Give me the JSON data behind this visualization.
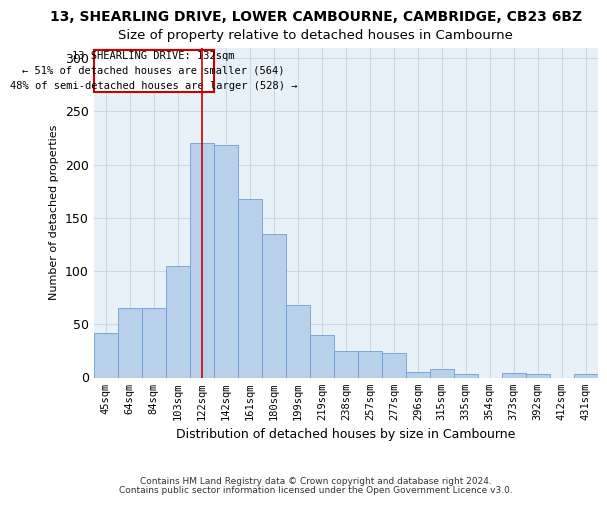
{
  "title1": "13, SHEARLING DRIVE, LOWER CAMBOURNE, CAMBRIDGE, CB23 6BZ",
  "title2": "Size of property relative to detached houses in Cambourne",
  "xlabel": "Distribution of detached houses by size in Cambourne",
  "ylabel": "Number of detached properties",
  "footer1": "Contains HM Land Registry data © Crown copyright and database right 2024.",
  "footer2": "Contains public sector information licensed under the Open Government Licence v3.0.",
  "annotation_line1": "13 SHEARLING DRIVE: 132sqm",
  "annotation_line2": "← 51% of detached houses are smaller (564)",
  "annotation_line3": "48% of semi-detached houses are larger (528) →",
  "bar_labels": [
    "45sqm",
    "64sqm",
    "84sqm",
    "103sqm",
    "122sqm",
    "142sqm",
    "161sqm",
    "180sqm",
    "199sqm",
    "219sqm",
    "238sqm",
    "257sqm",
    "277sqm",
    "296sqm",
    "315sqm",
    "335sqm",
    "354sqm",
    "373sqm",
    "392sqm",
    "412sqm",
    "431sqm"
  ],
  "bar_values": [
    42,
    65,
    65,
    105,
    220,
    218,
    168,
    135,
    68,
    40,
    25,
    25,
    23,
    5,
    8,
    3,
    0,
    4,
    3,
    0,
    3
  ],
  "bar_color": "#b8d0ea",
  "bar_edge_color": "#6a9fd8",
  "annotation_box_color": "#cc0000",
  "marker_line_color": "#cc0000",
  "marker_bar_index": 4,
  "ylim": [
    0,
    310
  ],
  "yticks": [
    0,
    50,
    100,
    150,
    200,
    250,
    300
  ],
  "grid_color": "#c8d8e8",
  "bg_color": "#e8f0f8",
  "title1_fontsize": 10,
  "title2_fontsize": 9.5,
  "xlabel_fontsize": 9,
  "ylabel_fontsize": 8
}
